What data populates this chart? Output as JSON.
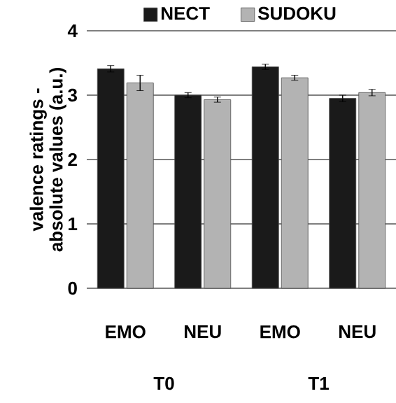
{
  "chart_data": {
    "type": "bar",
    "ylabel": "valence ratings - absolute values (a.u.)",
    "categories": [
      "EMO",
      "NEU",
      "EMO",
      "NEU"
    ],
    "series": [
      {
        "name": "NECT",
        "color": "#1a1a1a",
        "values": [
          3.41,
          3.0,
          3.44,
          2.95
        ],
        "errors": [
          0.05,
          0.04,
          0.04,
          0.05
        ]
      },
      {
        "name": "SUDOKU",
        "color": "#b3b3b3",
        "values": [
          3.19,
          2.93,
          3.27,
          3.04
        ],
        "errors": [
          0.12,
          0.04,
          0.04,
          0.05
        ]
      }
    ],
    "annotations": [
      "T0",
      "T1"
    ],
    "ylim": [
      0,
      4
    ],
    "yticks": [
      0,
      1,
      2,
      3,
      4
    ],
    "grid": "y",
    "legend": "top"
  }
}
